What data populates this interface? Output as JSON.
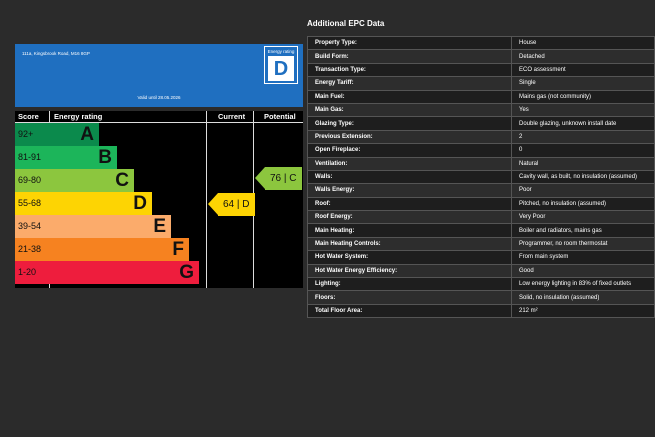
{
  "certificate": {
    "address": "111a, Kingsbrook Road, M16 8GP",
    "valid_until": "Valid until 28.05.2026",
    "badge_label": "Energy rating",
    "badge_letter": "D"
  },
  "chart": {
    "headers": {
      "score": "Score",
      "energy_rating": "Energy rating",
      "current": "Current",
      "potential": "Potential"
    },
    "bands": [
      {
        "score": "92+",
        "letter": "A",
        "color": "#0b8a4c",
        "width_fraction": 0.33
      },
      {
        "score": "81-91",
        "letter": "B",
        "color": "#1cb55a",
        "width_fraction": 0.45
      },
      {
        "score": "69-80",
        "letter": "C",
        "color": "#8cc63e",
        "width_fraction": 0.57
      },
      {
        "score": "55-68",
        "letter": "D",
        "color": "#fdd403",
        "width_fraction": 0.69
      },
      {
        "score": "39-54",
        "letter": "E",
        "color": "#fbab6b",
        "width_fraction": 0.81
      },
      {
        "score": "21-38",
        "letter": "F",
        "color": "#f68220",
        "width_fraction": 0.93
      },
      {
        "score": "1-20",
        "letter": "G",
        "color": "#ee1d3d",
        "width_fraction": 1.0
      }
    ],
    "current": {
      "value": "64",
      "letter": "D",
      "color": "#fdd403",
      "band_index": 3
    },
    "potential": {
      "value": "76",
      "letter": "C",
      "color": "#8cc63e",
      "band_index": 2
    }
  },
  "additional": {
    "title": "Additional EPC Data",
    "rows": [
      {
        "k": "Property Type:",
        "v": "House"
      },
      {
        "k": "Build Form:",
        "v": "Detached"
      },
      {
        "k": "Transaction Type:",
        "v": "ECO assessment"
      },
      {
        "k": "Energy Tariff:",
        "v": "Single"
      },
      {
        "k": "Main Fuel:",
        "v": "Mains gas (not community)"
      },
      {
        "k": "Main Gas:",
        "v": "Yes"
      },
      {
        "k": "Glazing Type:",
        "v": "Double glazing, unknown install date"
      },
      {
        "k": "Previous Extension:",
        "v": "2"
      },
      {
        "k": "Open Fireplace:",
        "v": "0"
      },
      {
        "k": "Ventilation:",
        "v": "Natural"
      },
      {
        "k": "Walls:",
        "v": "Cavity wall, as built, no insulation (assumed)"
      },
      {
        "k": "Walls Energy:",
        "v": "Poor"
      },
      {
        "k": "Roof:",
        "v": "Pitched, no insulation (assumed)"
      },
      {
        "k": "Roof Energy:",
        "v": "Very Poor"
      },
      {
        "k": "Main Heating:",
        "v": "Boiler and radiators, mains gas"
      },
      {
        "k": "Main Heating Controls:",
        "v": "Programmer, no room thermostat"
      },
      {
        "k": "Hot Water System:",
        "v": "From main system"
      },
      {
        "k": "Hot Water Energy Efficiency:",
        "v": "Good"
      },
      {
        "k": "Lighting:",
        "v": "Low energy lighting in 83% of fixed outlets"
      },
      {
        "k": "Floors:",
        "v": "Solid, no insulation (assumed)"
      },
      {
        "k": "Total Floor Area:",
        "v": "212 m²"
      }
    ]
  }
}
